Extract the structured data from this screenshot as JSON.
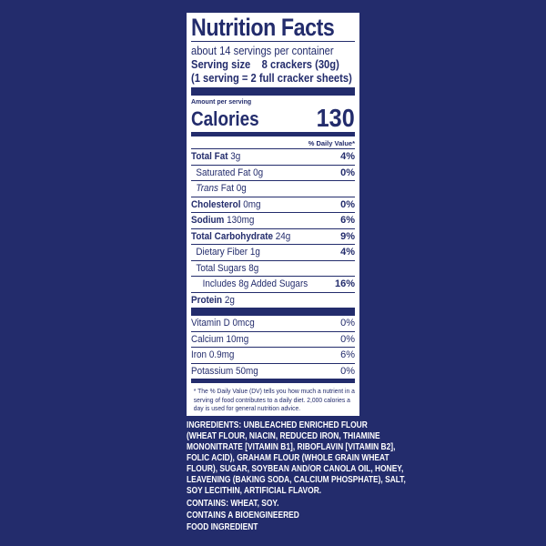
{
  "label": {
    "title": "Nutrition Facts",
    "servings_per_container": "about 14 servings per container",
    "serving_size_label": "Serving size",
    "serving_size_value": "8 crackers (30g)",
    "serving_note": "(1 serving = 2 full cracker sheets)",
    "amount_per_serving": "Amount per serving",
    "calories_label": "Calories",
    "calories_value": "130",
    "dv_header": "% Daily Value*",
    "nutrients": [
      {
        "name": "Total Fat",
        "amount": "3g",
        "dv": "4%"
      },
      {
        "name": "Saturated Fat",
        "amount": "0g",
        "dv": "0%"
      },
      {
        "name": "Trans",
        "amount": "Fat 0g",
        "dv": ""
      },
      {
        "name": "Cholesterol",
        "amount": "0mg",
        "dv": "0%"
      },
      {
        "name": "Sodium",
        "amount": "130mg",
        "dv": "6%"
      },
      {
        "name": "Total Carbohydrate",
        "amount": "24g",
        "dv": "9%"
      },
      {
        "name": "Dietary Fiber",
        "amount": "1g",
        "dv": "4%"
      },
      {
        "name": "Total Sugars",
        "amount": "8g",
        "dv": ""
      },
      {
        "name": "Includes 8g Added Sugars",
        "amount": "",
        "dv": "16%"
      },
      {
        "name": "Protein",
        "amount": "2g",
        "dv": ""
      }
    ],
    "vitamins": [
      {
        "name": "Vitamin D",
        "amount": "0mcg",
        "dv": "0%"
      },
      {
        "name": "Calcium",
        "amount": "10mg",
        "dv": "0%"
      },
      {
        "name": "Iron",
        "amount": "0.9mg",
        "dv": "6%"
      },
      {
        "name": "Potassium",
        "amount": "50mg",
        "dv": "0%"
      }
    ],
    "footnote": "* The % Daily Value (DV) tells you how much a nutrient in a serving of food contributes to a daily diet. 2,000 calories a day is used for general nutrition advice."
  },
  "ingredients": {
    "lines": [
      "INGREDIENTS: UNBLEACHED ENRICHED FLOUR",
      "(WHEAT FLOUR, NIACIN, REDUCED IRON, THIAMINE",
      "MONONITRATE [VITAMIN B1], RIBOFLAVIN [VITAMIN B2],",
      "FOLIC ACID), GRAHAM FLOUR (WHOLE GRAIN WHEAT",
      "FLOUR), SUGAR, SOYBEAN AND/OR CANOLA OIL, HONEY,",
      "LEAVENING (BAKING SODA, CALCIUM PHOSPHATE), SALT,",
      "SOY LECITHIN, ARTIFICIAL FLAVOR."
    ],
    "contains": "CONTAINS: WHEAT, SOY.",
    "bioengineered_1": "CONTAINS A BIOENGINEERED",
    "bioengineered_2": "FOOD INGREDIENT"
  },
  "colors": {
    "background": "#232c6c",
    "label": "#ffffff",
    "ink": "#232c6c"
  }
}
